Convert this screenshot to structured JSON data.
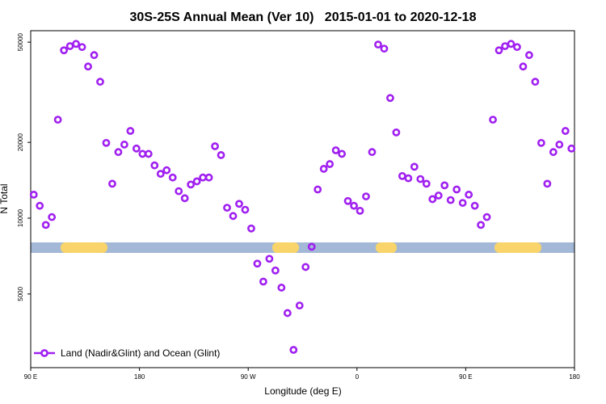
{
  "chart_data": {
    "type": "scatter",
    "title": "30S-25S Annual Mean (Ver 10)   2015-01-01 to 2020-12-18",
    "xlabel": "Longitude (deg E)",
    "ylabel": "N Total",
    "xlim": [
      90,
      540
    ],
    "ylim": [
      2550,
      55500
    ],
    "log_y": true,
    "xticks": [
      {
        "value": 90,
        "label": "90 E"
      },
      180,
      {
        "value": 270,
        "label": "90 W"
      },
      {
        "value": 360,
        "label": "0"
      },
      {
        "value": 450,
        "label": "90 E"
      },
      {
        "value": 540,
        "label": "180"
      }
    ],
    "yticks": [
      5000,
      10000,
      20000,
      50000
    ],
    "legend": "bottom-left",
    "series": [
      {
        "name": "Land (Nadir&Glint) and Ocean (Glint)",
        "color": "#a020f0",
        "x": [
          92.5,
          97.5,
          102.5,
          107.5,
          112.5,
          117.5,
          122.5,
          127.5,
          132.5,
          137.5,
          142.5,
          147.5,
          152.5,
          157.5,
          162.5,
          167.5,
          172.5,
          177.5,
          182.5,
          187.5,
          192.5,
          197.5,
          202.5,
          207.5,
          212.5,
          217.5,
          222.5,
          227.5,
          232.5,
          237.5,
          242.5,
          247.5,
          252.5,
          257.5,
          262.5,
          267.5,
          272.5,
          277.5,
          282.5,
          287.5,
          292.5,
          297.5,
          302.5,
          307.5,
          312.5,
          317.5,
          322.5,
          327.5,
          332.5,
          337.5,
          342.5,
          347.5,
          352.5,
          357.5,
          362.5,
          367.5,
          372.5,
          377.5,
          382.5,
          387.5,
          392.5,
          397.5,
          402.5,
          407.5,
          412.5,
          417.5,
          422.5,
          427.5,
          432.5,
          437.5,
          442.5,
          447.5,
          452.5,
          457.5,
          462.5,
          467.5,
          472.5,
          477.5,
          482.5,
          487.5,
          492.5,
          497.5,
          502.5,
          507.5,
          512.5,
          517.5,
          522.5,
          527.5,
          532.5,
          537.5
        ],
        "values": [
          12400,
          11200,
          9400,
          10100,
          24600,
          46400,
          48200,
          49200,
          47800,
          40000,
          44400,
          34800,
          19900,
          13700,
          18300,
          19600,
          22200,
          18900,
          18000,
          18000,
          16200,
          15000,
          15500,
          14500,
          12800,
          12000,
          13600,
          14000,
          14500,
          14500,
          19300,
          17800,
          11000,
          10200,
          11400,
          10800,
          9100,
          6600,
          5600,
          6900,
          6200,
          5300,
          4200,
          3000,
          4500,
          6400,
          7700,
          13000,
          15700,
          16400,
          18600,
          18000,
          11700,
          11200,
          10700,
          12200,
          18300,
          48900,
          47100,
          30000,
          21900,
          14700,
          14400,
          16000,
          14300,
          13700,
          11900,
          12300,
          13500,
          11800,
          13000,
          11500,
          12400,
          11200,
          9400,
          10100,
          24600,
          46400,
          48200,
          49200,
          47800,
          40000,
          44400,
          34800,
          19900,
          13700,
          18300,
          19600,
          22200,
          18900
        ]
      }
    ]
  }
}
